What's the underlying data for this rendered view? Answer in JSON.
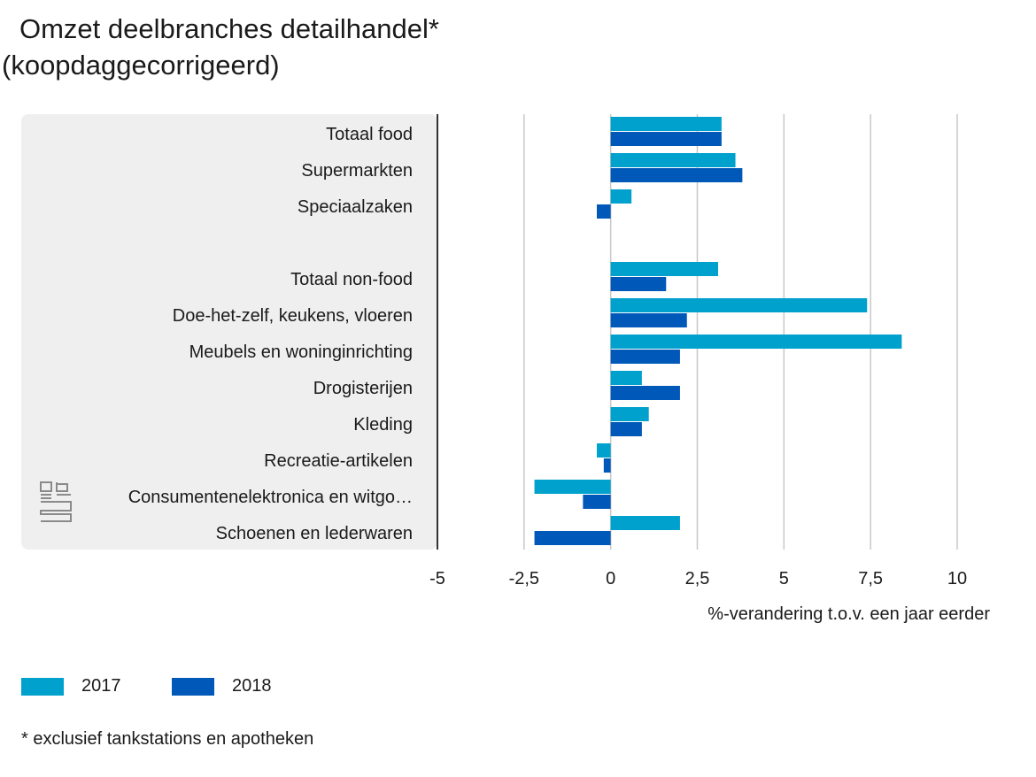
{
  "title": "Omzet deelbranches detailhandel*",
  "subtitle": "(koopdaggecorrigeerd)",
  "footnote": "* exclusief tankstations en apotheken",
  "colors": {
    "series_2017": "#00a1cd",
    "series_2018": "#0058b8",
    "grid": "#c8c8c8",
    "panel": "#efefef",
    "axis": "#333333"
  },
  "chart_data": {
    "type": "bar",
    "orientation": "horizontal",
    "xlabel": "%-verandering t.o.v. een jaar eerder",
    "xlim": [
      -5,
      10
    ],
    "xticks": [
      -5,
      -2.5,
      0,
      2.5,
      5,
      7.5,
      10
    ],
    "xtick_labels": [
      "-5",
      "-2,5",
      "0",
      "2,5",
      "5",
      "7,5",
      "10"
    ],
    "grid": true,
    "legend_position": "bottom-left",
    "categories": [
      "Totaal food",
      "Supermarkten",
      "Speciaalzaken",
      "",
      "Totaal non-food",
      "Doe-het-zelf, keukens, vloeren",
      "Meubels en woninginrichting",
      "Drogisterijen",
      "Kleding",
      "Recreatie-artikelen",
      "Consumentenelektronica en witgo…",
      "Schoenen en lederwaren"
    ],
    "series": [
      {
        "name": "2017",
        "values": [
          3.2,
          3.6,
          0.6,
          null,
          3.1,
          7.4,
          8.4,
          0.9,
          1.1,
          -0.4,
          -2.2,
          2.0
        ]
      },
      {
        "name": "2018",
        "values": [
          3.2,
          3.8,
          -0.4,
          null,
          1.6,
          2.2,
          2.0,
          2.0,
          0.9,
          -0.2,
          -0.8,
          -2.2
        ]
      }
    ]
  }
}
